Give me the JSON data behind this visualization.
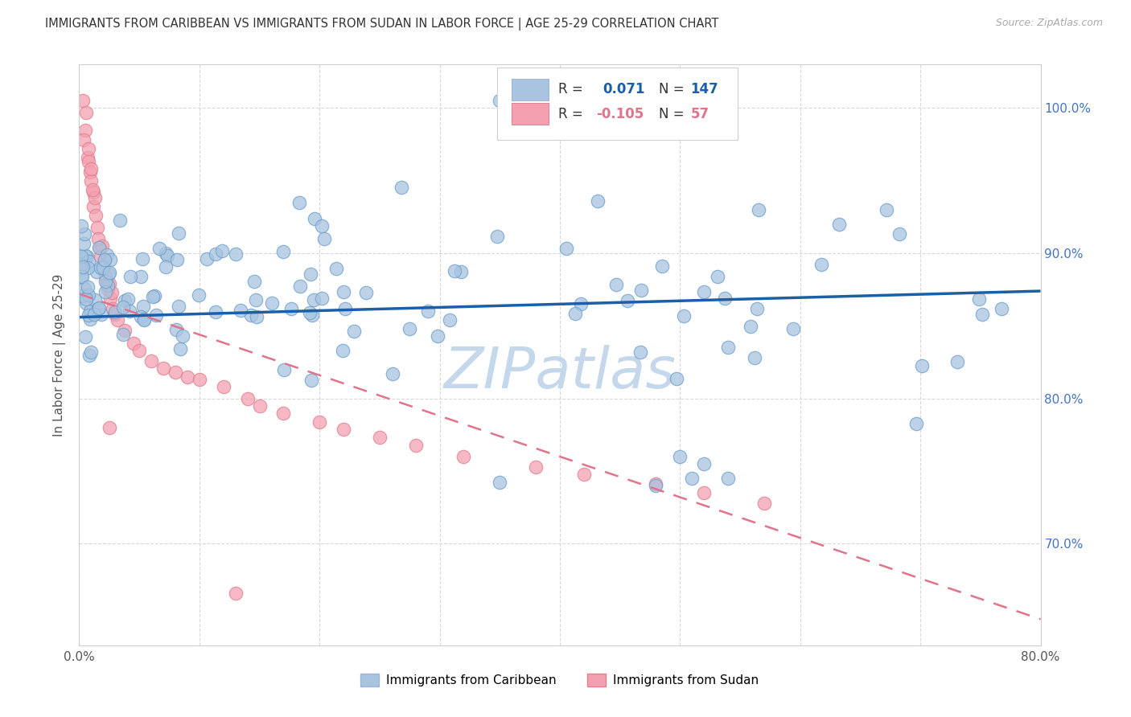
{
  "title": "IMMIGRANTS FROM CARIBBEAN VS IMMIGRANTS FROM SUDAN IN LABOR FORCE | AGE 25-29 CORRELATION CHART",
  "source": "Source: ZipAtlas.com",
  "ylabel": "In Labor Force | Age 25-29",
  "xlim": [
    0.0,
    0.8
  ],
  "ylim": [
    0.63,
    1.03
  ],
  "color_caribbean": "#a8c4e0",
  "color_sudan": "#f4a0b0",
  "color_line_caribbean": "#1a5fa8",
  "color_line_sudan": "#e0748a",
  "watermark": "ZIPatlas",
  "watermark_color": "#c5d8eb",
  "background_color": "#ffffff",
  "grid_color": "#d8d8d8",
  "R_caribbean": 0.071,
  "N_caribbean": 147,
  "R_sudan": -0.105,
  "N_sudan": 57,
  "carib_trend_x": [
    0.0,
    0.8
  ],
  "carib_trend_y": [
    0.856,
    0.874
  ],
  "sudan_trend_x": [
    0.0,
    0.8
  ],
  "sudan_trend_y": [
    0.872,
    0.648
  ]
}
